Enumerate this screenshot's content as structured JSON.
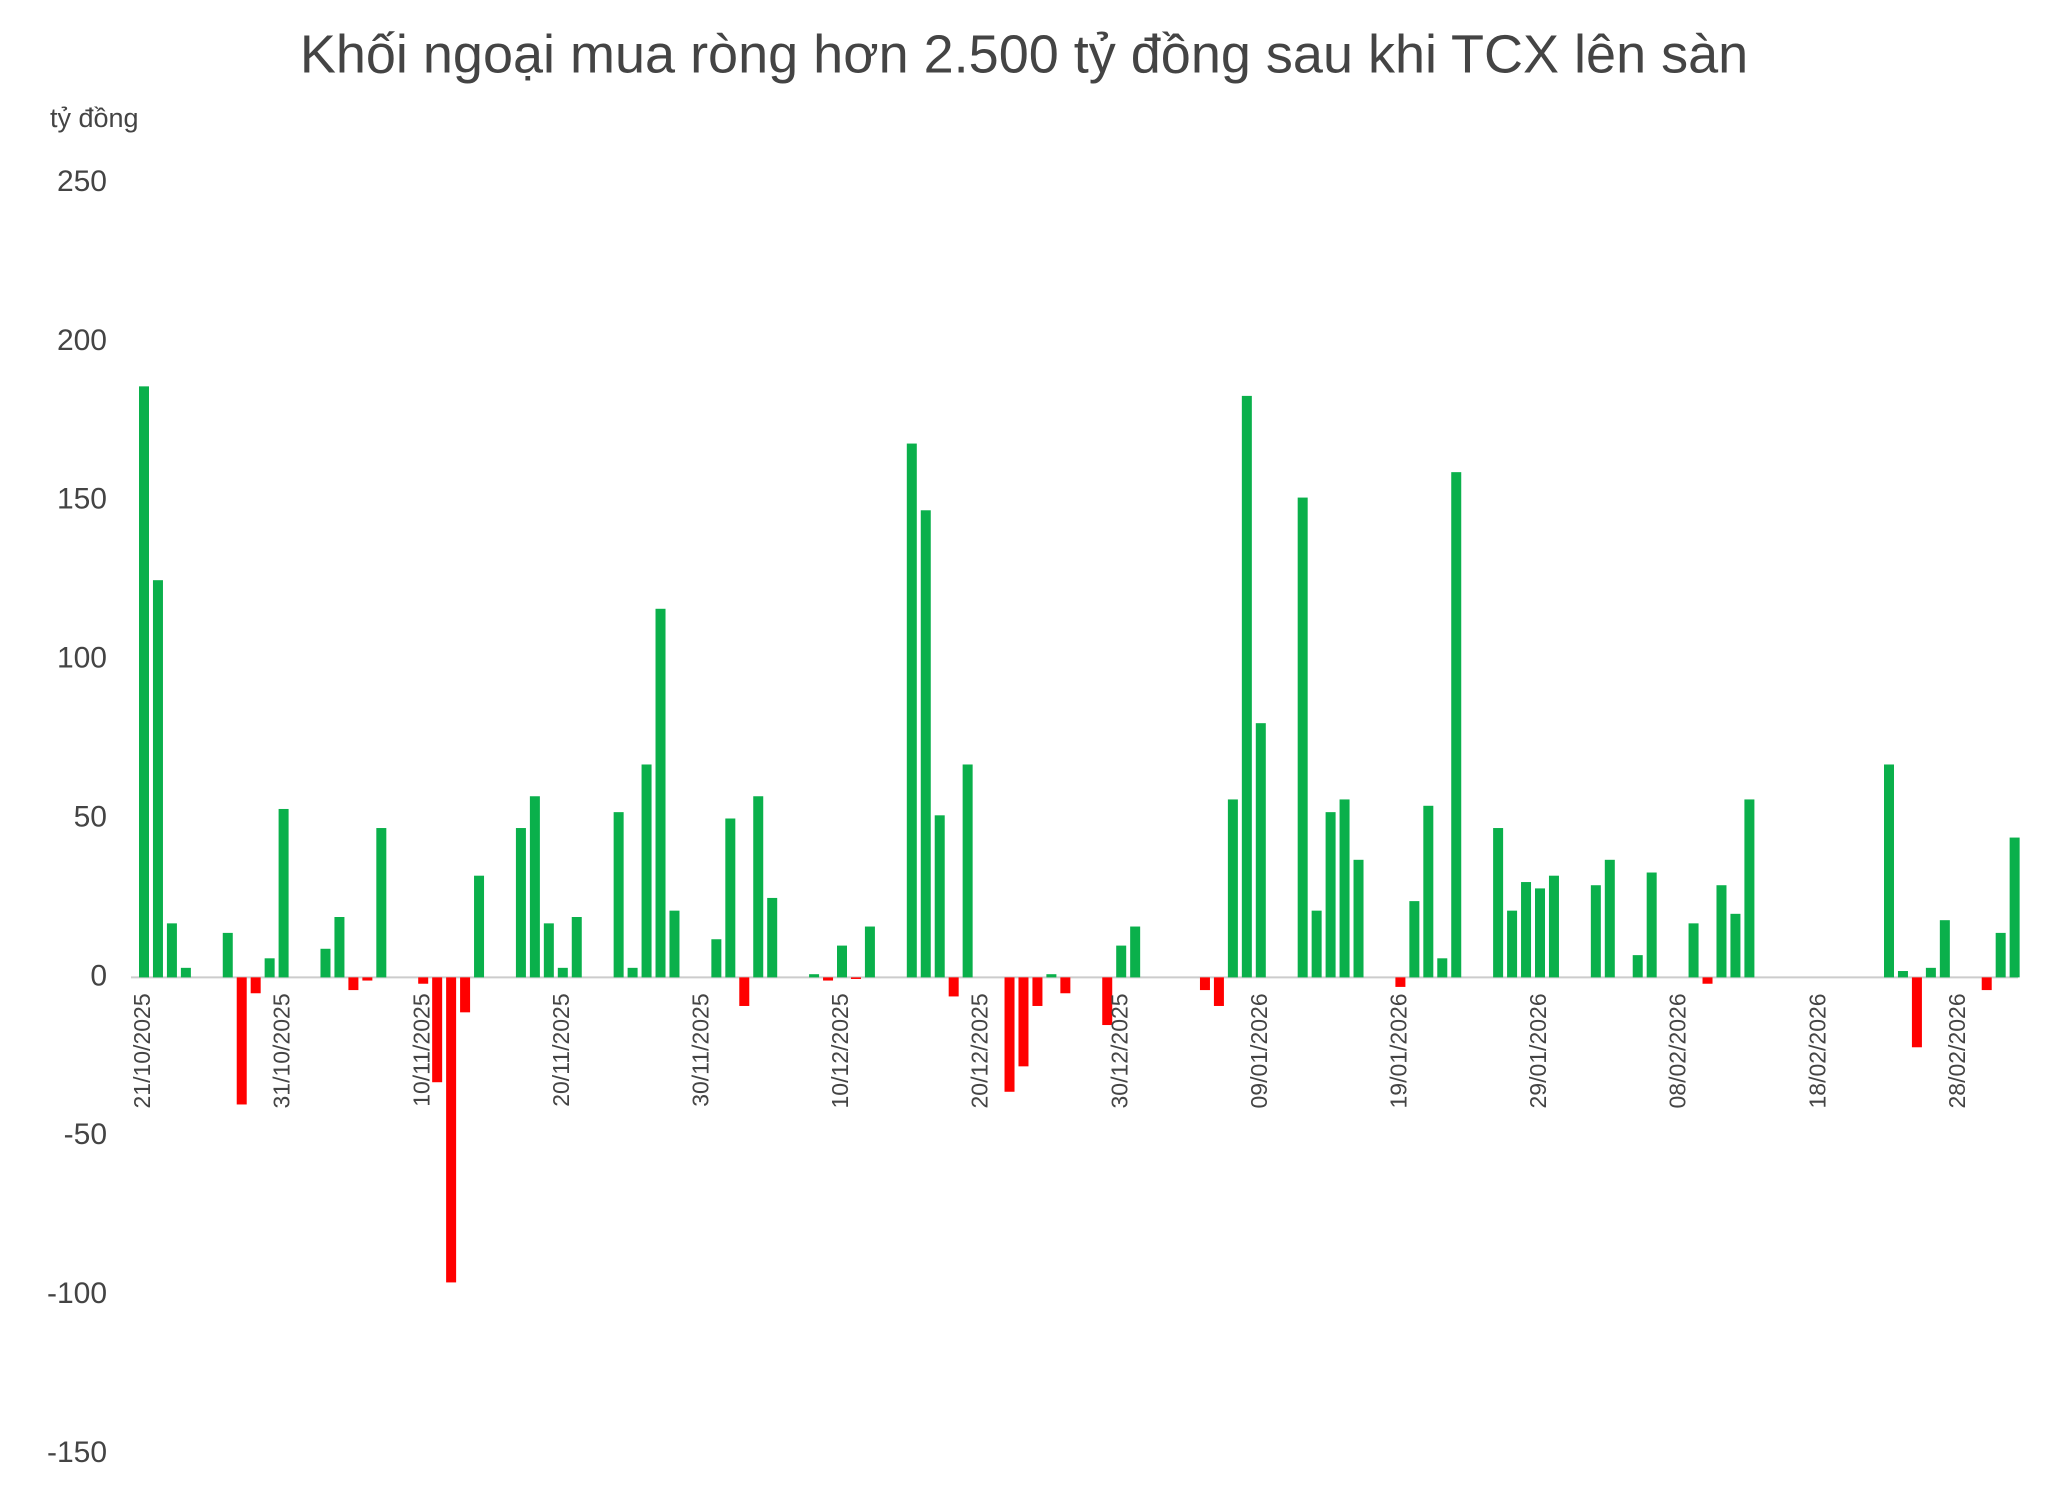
{
  "chart_data": {
    "type": "bar",
    "title": "Khối ngoại mua ròng hơn 2.500 tỷ đồng sau khi TCX lên sàn",
    "y_label": "tỷ đồng",
    "categories": [
      "21/10/2025",
      null,
      null,
      null,
      null,
      null,
      null,
      null,
      null,
      null,
      "31/10/2025",
      null,
      null,
      null,
      null,
      null,
      null,
      null,
      null,
      null,
      "10/11/2025",
      null,
      null,
      null,
      null,
      null,
      null,
      null,
      null,
      null,
      "20/11/2025",
      null,
      null,
      null,
      null,
      null,
      null,
      null,
      null,
      null,
      "30/11/2025",
      null,
      null,
      null,
      null,
      null,
      null,
      null,
      null,
      null,
      "10/12/2025",
      null,
      null,
      null,
      null,
      null,
      null,
      null,
      null,
      null,
      "20/12/2025",
      null,
      null,
      null,
      null,
      null,
      null,
      null,
      null,
      null,
      "30/12/2025",
      null,
      null,
      null,
      null,
      null,
      null,
      null,
      null,
      null,
      "09/01/2026",
      null,
      null,
      null,
      null,
      null,
      null,
      null,
      null,
      null,
      "19/01/2026",
      null,
      null,
      null,
      null,
      null,
      null,
      null,
      null,
      null,
      "29/01/2026",
      null,
      null,
      null,
      null,
      null,
      null,
      null,
      null,
      null,
      "08/02/2026",
      null,
      null,
      null,
      null,
      null,
      null,
      null,
      null,
      null,
      "18/02/2026",
      null,
      null,
      null,
      null,
      null,
      null,
      null,
      null,
      null,
      "28/02/2026",
      null,
      null,
      null,
      null
    ],
    "values": [
      186,
      125,
      17,
      3,
      null,
      null,
      14,
      -40,
      -5,
      6,
      53,
      null,
      null,
      9,
      19,
      -4,
      -1,
      47,
      null,
      null,
      -2,
      -33,
      -96,
      -11,
      32,
      null,
      null,
      47,
      57,
      17,
      3,
      19,
      null,
      null,
      52,
      3,
      67,
      116,
      21,
      null,
      null,
      12,
      50,
      -9,
      57,
      25,
      null,
      null,
      1,
      -1,
      10,
      -0.5,
      16,
      null,
      null,
      168,
      147,
      51,
      -6,
      67,
      null,
      null,
      -36,
      -28,
      -9,
      1,
      -5,
      null,
      null,
      -15,
      10,
      16,
      null,
      null,
      null,
      null,
      -4,
      -9,
      56,
      183,
      80,
      null,
      null,
      151,
      21,
      52,
      56,
      37,
      null,
      null,
      -3,
      24,
      54,
      6,
      159,
      null,
      null,
      47,
      21,
      30,
      28,
      32,
      null,
      null,
      29,
      37,
      null,
      7,
      33,
      null,
      null,
      17,
      -2,
      29,
      20,
      56,
      null,
      null,
      null,
      null,
      null,
      null,
      null,
      null,
      null,
      67,
      2,
      -22,
      3,
      18,
      null,
      null,
      -4,
      14,
      44
    ],
    "positive_color": "#0ab04b",
    "negative_color": "#ff0000",
    "ylim": [
      -150,
      250
    ],
    "yticks": [
      -150,
      -100,
      -50,
      0,
      50,
      100,
      150,
      200,
      250
    ],
    "grid": false
  }
}
